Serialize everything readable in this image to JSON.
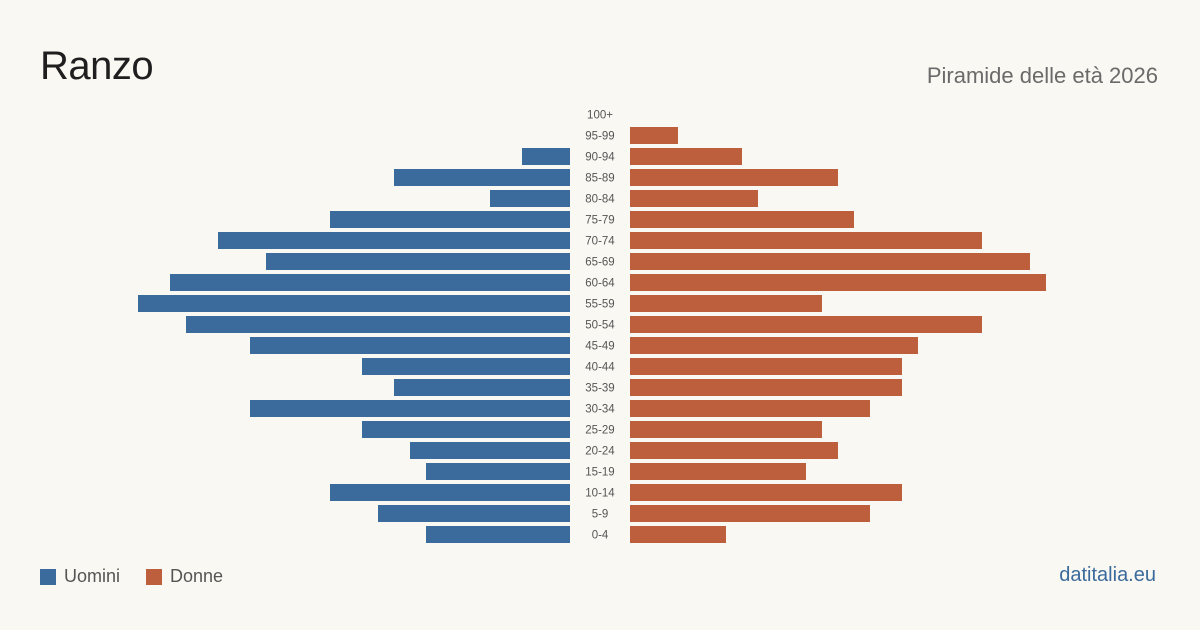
{
  "header": {
    "title": "Ranzo",
    "subtitle": "Piramide delle età 2026"
  },
  "legend": {
    "men_label": "Uomini",
    "women_label": "Donne"
  },
  "footer": {
    "source": "datitalia.eu"
  },
  "chart_data": {
    "type": "bar",
    "title": "Ranzo",
    "subtitle": "Piramide delle età 2026",
    "categories": [
      "100+",
      "95-99",
      "90-94",
      "85-89",
      "80-84",
      "75-79",
      "70-74",
      "65-69",
      "60-64",
      "55-59",
      "50-54",
      "45-49",
      "40-44",
      "35-39",
      "30-34",
      "25-29",
      "20-24",
      "15-19",
      "10-14",
      "5-9",
      "0-4"
    ],
    "series": [
      {
        "name": "Uomini",
        "color": "#3a6b9c",
        "values": [
          0,
          0,
          3,
          11,
          5,
          15,
          22,
          19,
          25,
          27,
          24,
          20,
          13,
          11,
          20,
          13,
          10,
          9,
          15,
          12,
          9
        ]
      },
      {
        "name": "Donne",
        "color": "#bd5f3d",
        "values": [
          0,
          3,
          7,
          13,
          8,
          14,
          22,
          25,
          26,
          12,
          22,
          18,
          17,
          17,
          15,
          12,
          13,
          11,
          17,
          15,
          6
        ]
      }
    ],
    "orientation": "horizontal-pyramid",
    "grid": false,
    "legend_position": "bottom-left"
  }
}
